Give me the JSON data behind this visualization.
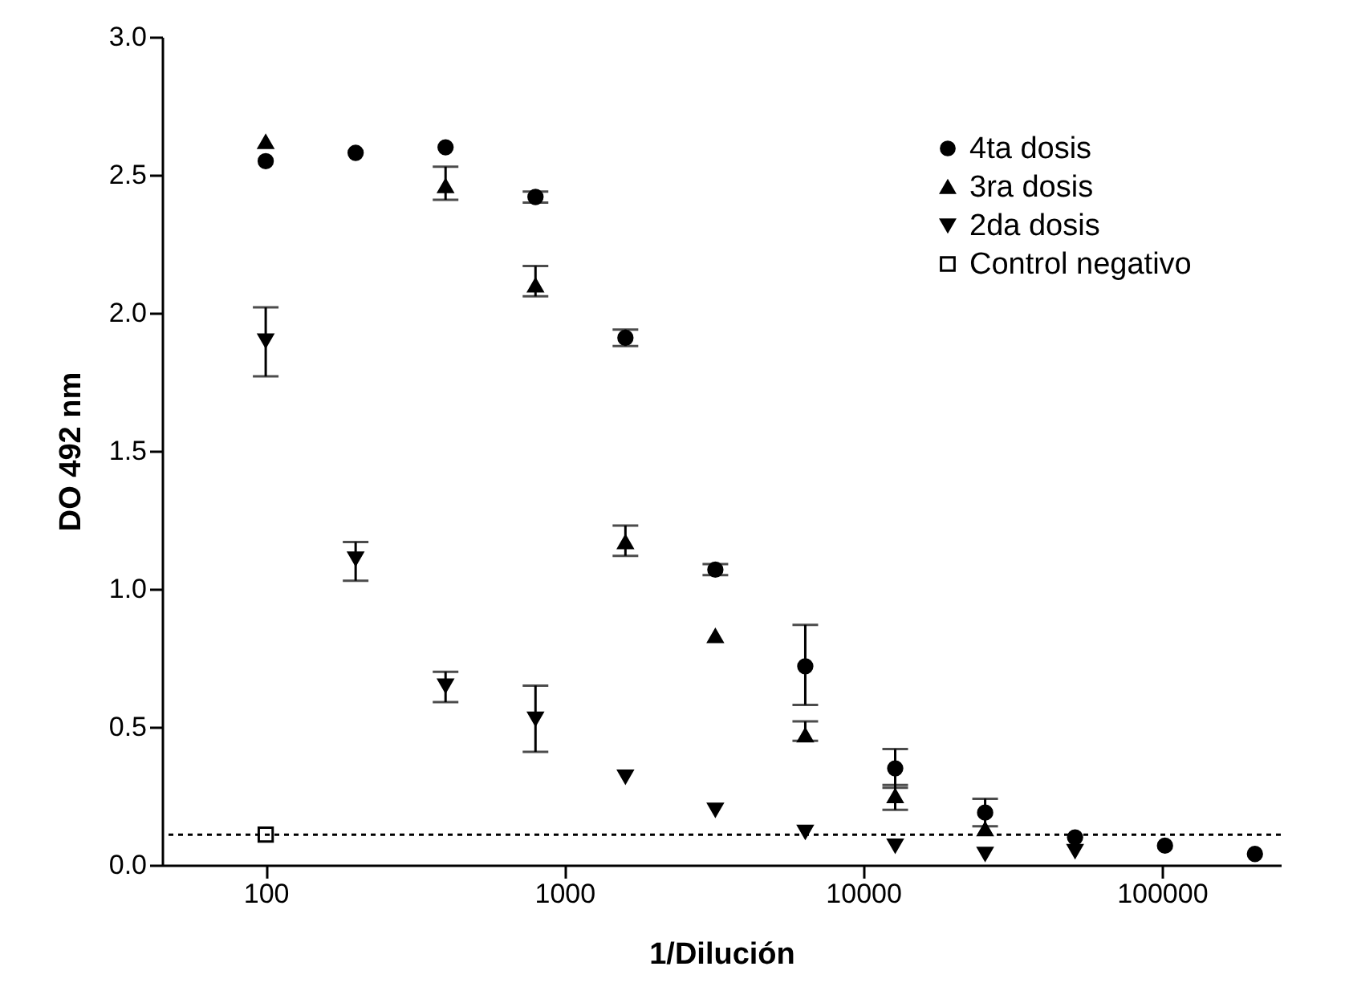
{
  "chart_data": {
    "type": "scatter",
    "xlabel": "1/Dilución",
    "ylabel": "DO 492 nm",
    "log": "x",
    "x": [
      100,
      200,
      400,
      800,
      1600,
      3200,
      6400,
      12800,
      25600,
      51200,
      102400,
      204800
    ],
    "series": [
      {
        "name": "4ta dosis",
        "color": "#000000",
        "marker": "circle",
        "values": [
          2.55,
          2.58,
          2.6,
          2.42,
          1.91,
          1.07,
          0.72,
          0.35,
          0.19,
          0.1,
          0.07,
          0.04
        ],
        "errors": [
          null,
          null,
          null,
          [
            2.4,
            2.44
          ],
          [
            1.88,
            1.94
          ],
          [
            1.05,
            1.09
          ],
          [
            0.58,
            0.87
          ],
          [
            0.28,
            0.42
          ],
          [
            0.14,
            0.24
          ],
          null,
          null,
          null
        ]
      },
      {
        "name": "3ra dosis",
        "color": "#000000",
        "marker": "triangle",
        "values": [
          2.62,
          null,
          2.46,
          2.1,
          1.17,
          0.83,
          0.47,
          0.25,
          0.13,
          null,
          null,
          null
        ],
        "errors": [
          null,
          null,
          [
            2.41,
            2.53
          ],
          [
            2.06,
            2.17
          ],
          [
            1.12,
            1.23
          ],
          null,
          [
            0.45,
            0.52
          ],
          [
            0.2,
            0.29
          ],
          null,
          null,
          null,
          null
        ]
      },
      {
        "name": "2da dosis",
        "color": "#000000",
        "marker": "triangle-down",
        "values": [
          1.9,
          1.11,
          0.65,
          0.53,
          0.32,
          0.2,
          0.12,
          0.07,
          0.04,
          0.05,
          null,
          null
        ],
        "errors": [
          [
            1.77,
            2.02
          ],
          [
            1.03,
            1.17
          ],
          [
            0.59,
            0.7
          ],
          [
            0.41,
            0.65
          ],
          null,
          null,
          null,
          null,
          null,
          null,
          null,
          null
        ]
      },
      {
        "name": "Control negativo",
        "color": "#000000",
        "marker": "square",
        "x": [
          100
        ],
        "values": [
          0.11
        ]
      }
    ],
    "ref_lines": [
      {
        "axis": "y",
        "value": 0.11,
        "line_style": "dotted"
      }
    ],
    "xlim": [
      45,
      250000
    ],
    "xticks": [
      100,
      1000,
      10000,
      100000
    ],
    "ylim": [
      0,
      3.0
    ],
    "yticks": [
      {
        "value": 0,
        "label": "0.0"
      },
      {
        "value": 0.5,
        "label": "0.5"
      },
      {
        "value": 1.0,
        "label": "1.0"
      },
      {
        "value": 1.5,
        "label": "1.5"
      },
      {
        "value": 2.0,
        "label": "2.0"
      },
      {
        "value": 2.5,
        "label": "2.5"
      },
      {
        "value": 3.0,
        "label": "3.0"
      }
    ],
    "grid": false,
    "legend": "top right"
  }
}
